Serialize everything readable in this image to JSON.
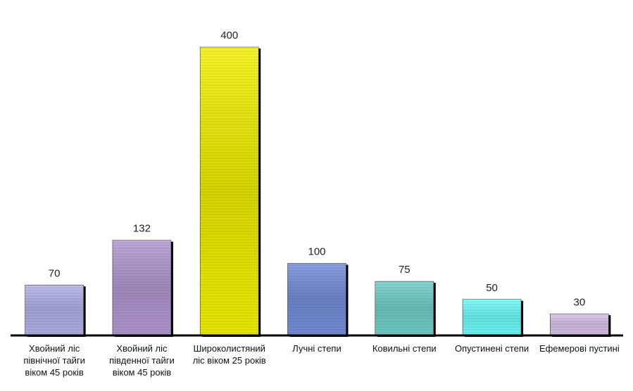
{
  "chart_data": {
    "type": "bar",
    "categories": [
      "Хвойний ліс північної тайги віком 45 років",
      "Хвойний ліс південної тайги віком 45 років",
      "Широколистяний ліс віком 25 років",
      "Лучні степи",
      "Ковильні степи",
      "Опустинені степи",
      "Ефемерові пустині"
    ],
    "values": [
      70,
      132,
      400,
      100,
      75,
      50,
      30
    ],
    "colors": [
      "#b4b4ec",
      "#b49ad4",
      "#f2f200",
      "#7890dc",
      "#72d2cc",
      "#70ffff",
      "#dcc6ee"
    ],
    "ylim": [
      0,
      400
    ]
  }
}
